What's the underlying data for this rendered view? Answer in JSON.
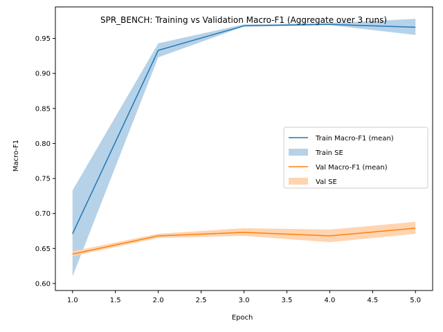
{
  "chart_data": {
    "type": "line",
    "title": "SPR_BENCH: Training vs Validation Macro-F1 (Aggregate over 3 runs)",
    "xlabel": "Epoch",
    "ylabel": "Macro-F1",
    "xlim": [
      0.8,
      5.2
    ],
    "ylim": [
      0.59,
      0.995
    ],
    "x_ticks": [
      1.0,
      1.5,
      2.0,
      2.5,
      3.0,
      3.5,
      4.0,
      4.5,
      5.0
    ],
    "x_tick_labels": [
      "1.0",
      "1.5",
      "2.0",
      "2.5",
      "3.0",
      "3.5",
      "4.0",
      "4.5",
      "5.0"
    ],
    "y_ticks": [
      0.6,
      0.65,
      0.7,
      0.75,
      0.8,
      0.85,
      0.9,
      0.95
    ],
    "y_tick_labels": [
      "0.60",
      "0.65",
      "0.70",
      "0.75",
      "0.80",
      "0.85",
      "0.90",
      "0.95"
    ],
    "x": [
      1,
      2,
      3,
      4,
      5
    ],
    "series": [
      {
        "name": "Train Macro-F1 (mean)",
        "band_name": "Train SE",
        "color": "#1f77b4",
        "band_color": "#b6d2e8",
        "values": [
          0.671,
          0.933,
          0.968,
          0.97,
          0.966
        ],
        "lower": [
          0.61,
          0.923,
          0.967,
          0.969,
          0.955
        ],
        "upper": [
          0.733,
          0.943,
          0.97,
          0.972,
          0.978
        ]
      },
      {
        "name": "Val Macro-F1 (mean)",
        "band_name": "Val SE",
        "color": "#ff7f0e",
        "band_color": "#ffd4b0",
        "values": [
          0.642,
          0.668,
          0.673,
          0.668,
          0.679
        ],
        "lower": [
          0.639,
          0.665,
          0.668,
          0.659,
          0.671
        ],
        "upper": [
          0.646,
          0.671,
          0.679,
          0.677,
          0.688
        ]
      }
    ],
    "legend": {
      "placement": "center-right",
      "entries": [
        "Train Macro-F1 (mean)",
        "Train SE",
        "Val Macro-F1 (mean)",
        "Val SE"
      ]
    },
    "grid": false
  }
}
